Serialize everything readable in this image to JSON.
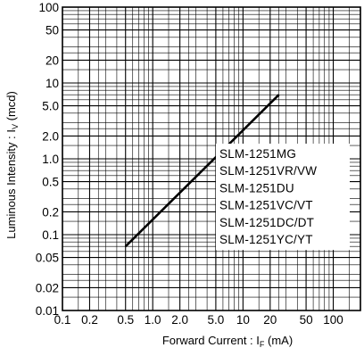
{
  "chart_data": {
    "type": "line",
    "xlabel_main": "Forward Current : I",
    "xlabel_sub": "F",
    "xlabel_unit": " (mA)",
    "ylabel_main": "Luminous Intensity : I",
    "ylabel_sub": "V",
    "ylabel_unit": " (mcd)",
    "x_scale": "log",
    "y_scale": "log",
    "xlim": [
      0.1,
      200
    ],
    "ylim": [
      0.01,
      100
    ],
    "grid": true,
    "x_ticks": [
      {
        "value": 0.1,
        "label": "0.1"
      },
      {
        "value": 0.2,
        "label": "0.2"
      },
      {
        "value": 0.5,
        "label": "0.5"
      },
      {
        "value": 1.0,
        "label": "1.0"
      },
      {
        "value": 2.0,
        "label": "2.0"
      },
      {
        "value": 5.0,
        "label": "5.0"
      },
      {
        "value": 10,
        "label": "10"
      },
      {
        "value": 20,
        "label": "20"
      },
      {
        "value": 50,
        "label": "50"
      },
      {
        "value": 100,
        "label": "100"
      }
    ],
    "y_ticks": [
      {
        "value": 100,
        "label": "100"
      },
      {
        "value": 50,
        "label": "50"
      },
      {
        "value": 20,
        "label": "20"
      },
      {
        "value": 10,
        "label": "10"
      },
      {
        "value": 5,
        "label": "5.0"
      },
      {
        "value": 2,
        "label": "2.0"
      },
      {
        "value": 1,
        "label": "1.0"
      },
      {
        "value": 0.5,
        "label": "0.5"
      },
      {
        "value": 0.2,
        "label": "0.2"
      },
      {
        "value": 0.1,
        "label": "0.1"
      },
      {
        "value": 0.05,
        "label": "0.05"
      },
      {
        "value": 0.02,
        "label": "0.02"
      },
      {
        "value": 0.01,
        "label": "0.01"
      }
    ],
    "series": [
      {
        "x": [
          0.5,
          25
        ],
        "y": [
          0.07,
          7
        ]
      }
    ],
    "legend_position": "right",
    "legend": [
      "SLM-1251MG",
      "SLM-1251VR/VW",
      "SLM-1251DU",
      "SLM-1251VC/VT",
      "SLM-1251DC/DT",
      "SLM-1251YC/YT"
    ]
  }
}
